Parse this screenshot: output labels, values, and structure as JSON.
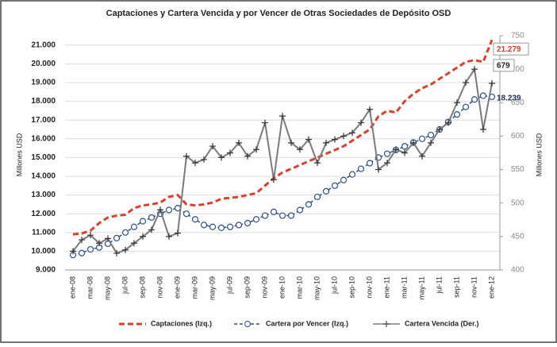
{
  "chart_data": {
    "type": "line",
    "title": "Captaciones y Cartera Vencida y por Vencer de Otras Sociedades de Depósito OSD",
    "ylabel": "Millones USD",
    "y2label": "Millones USD",
    "categories": [
      "ene-08",
      null,
      "mar-08",
      null,
      "may-08",
      null,
      "jul-08",
      null,
      "sep-08",
      null,
      "nov-08",
      null,
      "ene-09",
      null,
      "mar-09",
      null,
      "may-09",
      null,
      "jul-09",
      null,
      "sep-09",
      null,
      "nov-09",
      null,
      "ene-10",
      null,
      "mar-10",
      null,
      "may-10",
      null,
      "jul-10",
      null,
      "sep-10",
      null,
      "nov-10",
      null,
      "ene-11",
      null,
      "mar-11",
      null,
      "may-11",
      null,
      "jul-11",
      null,
      "sep-11",
      null,
      "nov-11",
      null,
      "ene-12"
    ],
    "ylim": [
      9000,
      21500
    ],
    "yticks": [
      {
        "value": 9000,
        "label": "9.000"
      },
      {
        "value": 10000,
        "label": "10.000"
      },
      {
        "value": 11000,
        "label": "11.000"
      },
      {
        "value": 12000,
        "label": "12.000"
      },
      {
        "value": 13000,
        "label": "13.000"
      },
      {
        "value": 14000,
        "label": "14.000"
      },
      {
        "value": 15000,
        "label": "15.000"
      },
      {
        "value": 16000,
        "label": "16.000"
      },
      {
        "value": 17000,
        "label": "17.000"
      },
      {
        "value": 18000,
        "label": "18.000"
      },
      {
        "value": 19000,
        "label": "19.000"
      },
      {
        "value": 20000,
        "label": "20.000"
      },
      {
        "value": 21000,
        "label": "21.000"
      }
    ],
    "y2lim": [
      400,
      750
    ],
    "y2ticks": [
      400,
      450,
      500,
      550,
      600,
      650,
      700,
      750
    ],
    "grid": true,
    "series": [
      {
        "name": "Captaciones (Izq.)",
        "color": "#d9412e",
        "style": "dashed",
        "values": [
          10900,
          10950,
          11100,
          11500,
          11800,
          11900,
          11950,
          12300,
          12450,
          12500,
          12600,
          12900,
          13000,
          12500,
          12450,
          12500,
          12600,
          12800,
          12850,
          12900,
          13000,
          13100,
          13500,
          13900,
          14200,
          14400,
          14600,
          14800,
          15000,
          15200,
          15400,
          15600,
          15900,
          16200,
          16500,
          17200,
          17500,
          17400,
          18000,
          18400,
          18700,
          18900,
          19200,
          19500,
          19800,
          20100,
          20200,
          20100,
          21279
        ],
        "value_labels": [
          null,
          null,
          null,
          null,
          null,
          null,
          null,
          null,
          null,
          null,
          null,
          null,
          null,
          null,
          null,
          null,
          null,
          null,
          null,
          null,
          null,
          null,
          null,
          null,
          null,
          null,
          null,
          null,
          null,
          null,
          null,
          null,
          null,
          null,
          null,
          null,
          null,
          null,
          null,
          null,
          null,
          null,
          null,
          null,
          null,
          null,
          null,
          null,
          "21.279"
        ]
      },
      {
        "name": "Cartera por Vencer (Izq.)",
        "color": "#2f4f86",
        "style": "circles",
        "values": [
          9800,
          9900,
          10100,
          10200,
          10400,
          10700,
          11000,
          11300,
          11600,
          11800,
          12000,
          12200,
          12300,
          12000,
          11700,
          11400,
          11300,
          11250,
          11300,
          11400,
          11500,
          11700,
          11900,
          12100,
          11900,
          11900,
          12200,
          12500,
          12900,
          13200,
          13500,
          13800,
          14100,
          14400,
          14700,
          15000,
          15200,
          15400,
          15600,
          15800,
          16000,
          16200,
          16500,
          16900,
          17300,
          17700,
          18100,
          18300,
          18239
        ],
        "value_labels": [
          null,
          null,
          null,
          null,
          null,
          null,
          null,
          null,
          null,
          null,
          null,
          null,
          null,
          null,
          null,
          null,
          null,
          null,
          null,
          null,
          null,
          null,
          null,
          null,
          null,
          null,
          null,
          null,
          null,
          null,
          null,
          null,
          null,
          null,
          null,
          null,
          null,
          null,
          null,
          null,
          null,
          null,
          null,
          null,
          null,
          null,
          null,
          null,
          "18.239"
        ]
      },
      {
        "name": "Cartera Vencida (Der.)",
        "color": "#7a7a7a",
        "style": "plus",
        "axis": "y2",
        "values": [
          428,
          445,
          452,
          440,
          447,
          425,
          430,
          440,
          450,
          460,
          490,
          450,
          455,
          570,
          560,
          565,
          585,
          568,
          575,
          590,
          570,
          580,
          620,
          535,
          630,
          590,
          580,
          595,
          560,
          590,
          595,
          600,
          605,
          620,
          640,
          550,
          560,
          580,
          575,
          590,
          570,
          590,
          610,
          620,
          650,
          680,
          700,
          610,
          679
        ]
      }
    ]
  }
}
